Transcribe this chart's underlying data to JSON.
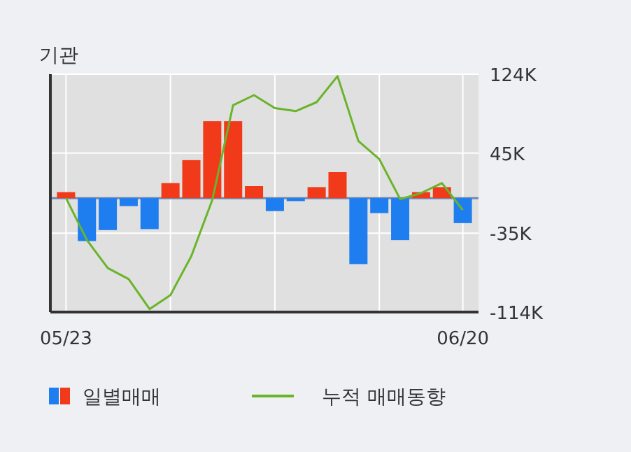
{
  "chart_data": {
    "type": "bar",
    "title": "기관",
    "categories": [
      "05/23",
      null,
      null,
      null,
      null,
      null,
      null,
      null,
      null,
      null,
      null,
      null,
      null,
      null,
      null,
      null,
      null,
      null,
      null,
      "06/20"
    ],
    "series": [
      {
        "name": "일별매매",
        "values": [
          6000,
          -43000,
          -32000,
          -8000,
          -31000,
          15000,
          38000,
          77000,
          77000,
          12000,
          -13000,
          -3000,
          11000,
          26000,
          -66000,
          -15000,
          -42000,
          6000,
          11000,
          -25000
        ],
        "colors": [
          "#f03a1a",
          "#1e7ef0",
          "#1e7ef0",
          "#1e7ef0",
          "#1e7ef0",
          "#f03a1a",
          "#f03a1a",
          "#f03a1a",
          "#f03a1a",
          "#f03a1a",
          "#1e7ef0",
          "#1e7ef0",
          "#f03a1a",
          "#f03a1a",
          "#1e7ef0",
          "#1e7ef0",
          "#1e7ef0",
          "#f03a1a",
          "#f03a1a",
          "#1e7ef0"
        ]
      },
      {
        "name": "누적 매매동향",
        "type": "line",
        "color": "#6ab42a",
        "values": [
          0,
          -42000,
          -70000,
          -81000,
          -111000,
          -97000,
          -58000,
          -2000,
          93000,
          103000,
          90000,
          87000,
          96000,
          122000,
          57000,
          39000,
          -1000,
          5000,
          15000,
          -12000
        ]
      }
    ],
    "ylim": [
      -114000,
      124000
    ],
    "yticks": [
      {
        "value": 124000,
        "label": "124K"
      },
      {
        "value": 45000,
        "label": "45K"
      },
      {
        "value": -35000,
        "label": "-35K"
      },
      {
        "value": -114000,
        "label": "-114K"
      }
    ],
    "ref_lines": [
      {
        "axis": "y",
        "value": 0,
        "color": "#7089b0"
      }
    ],
    "grid": true,
    "legend": "bottom"
  }
}
